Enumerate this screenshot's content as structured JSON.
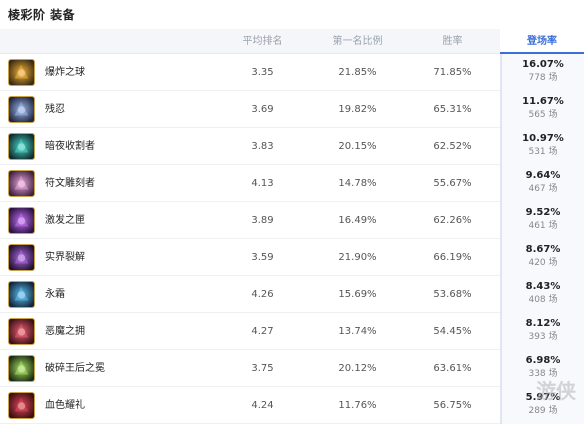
{
  "page": {
    "title": "棱彩阶 装备",
    "watermark": "游侠"
  },
  "headers": {
    "avg": "平均排名",
    "top": "第一名比例",
    "win": "胜率",
    "pick": "登场率"
  },
  "items": [
    {
      "name": "爆炸之球",
      "avg": "3.35",
      "top": "21.85%",
      "win": "71.85%",
      "pick": "16.07%",
      "count": "778 场",
      "icon": "explosive-orb-icon",
      "c1": "#3a2a12",
      "c2": "#f2b33a"
    },
    {
      "name": "残忍",
      "avg": "3.69",
      "top": "19.82%",
      "win": "65.31%",
      "pick": "11.67%",
      "count": "565 场",
      "icon": "cruelty-icon",
      "c1": "#1e2540",
      "c2": "#9cb6e8"
    },
    {
      "name": "暗夜收割者",
      "avg": "3.83",
      "top": "20.15%",
      "win": "62.52%",
      "pick": "10.97%",
      "count": "531 场",
      "icon": "night-harvester-icon",
      "c1": "#0f2a2c",
      "c2": "#49d7c9"
    },
    {
      "name": "符文雕刻者",
      "avg": "4.13",
      "top": "14.78%",
      "win": "55.67%",
      "pick": "9.64%",
      "count": "467 场",
      "icon": "rune-carver-icon",
      "c1": "#3a2140",
      "c2": "#e9a4d8"
    },
    {
      "name": "激发之匣",
      "avg": "3.89",
      "top": "16.49%",
      "win": "62.26%",
      "pick": "9.52%",
      "count": "461 场",
      "icon": "excitation-box-icon",
      "c1": "#2a1240",
      "c2": "#c06ef0"
    },
    {
      "name": "实界裂解",
      "avg": "3.59",
      "top": "21.90%",
      "win": "66.19%",
      "pick": "8.67%",
      "count": "420 场",
      "icon": "reality-rift-icon",
      "c1": "#1c1030",
      "c2": "#b06ae0"
    },
    {
      "name": "永霜",
      "avg": "4.26",
      "top": "15.69%",
      "win": "53.68%",
      "pick": "8.43%",
      "count": "408 场",
      "icon": "everfrost-icon",
      "c1": "#10243a",
      "c2": "#5fc0f0"
    },
    {
      "name": "恶魔之拥",
      "avg": "4.27",
      "top": "13.74%",
      "win": "54.45%",
      "pick": "8.12%",
      "count": "393 场",
      "icon": "demonic-embrace-icon",
      "c1": "#3a1016",
      "c2": "#e86070"
    },
    {
      "name": "破碎王后之冕",
      "avg": "3.75",
      "top": "20.12%",
      "win": "63.61%",
      "pick": "6.98%",
      "count": "338 场",
      "icon": "shattered-queen-crown-icon",
      "c1": "#1a2a12",
      "c2": "#a8e060"
    },
    {
      "name": "血色耀礼",
      "avg": "4.24",
      "top": "11.76%",
      "win": "56.75%",
      "pick": "5.97%",
      "count": "289 场",
      "icon": "crimson-ritual-icon",
      "c1": "#3a0e14",
      "c2": "#e04858"
    }
  ]
}
